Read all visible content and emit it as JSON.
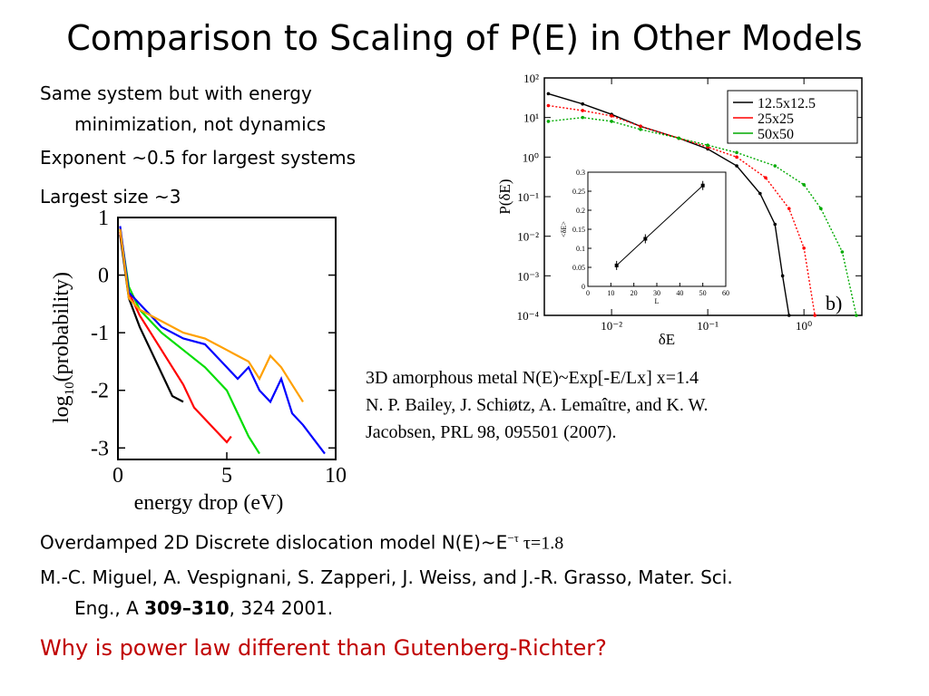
{
  "slide": {
    "title": "Comparison to Scaling of P(E) in Other Models",
    "bullets": {
      "b1_line1": "Same system but with energy",
      "b1_line2": "minimization, not dynamics",
      "b2": "Exponent ~0.5 for largest systems",
      "b3": "Largest size ~3",
      "b4_prefix": "Overdamped 2D Discrete dislocation model N(E)~E",
      "b4_exp": "−τ",
      "b4_suffix": " τ=1.8",
      "ref2_line1": "M.-C. Miguel, A. Vespignani, S. Zapperi, J. Weiss, and J.-R. Grasso, Mater. Sci.",
      "ref2_line2_a": "Eng., A ",
      "ref2_line2_b": "309–310",
      "ref2_line2_c": ", 324 2001.",
      "question": "Why is power law different than Gutenberg-Richter?"
    },
    "caption": {
      "line1": "3D amorphous metal N(E)~Exp[-E/Lx] x=1.4",
      "line2": "N. P. Bailey, J. Schiøtz, A. Lemaître, and K. W.",
      "line3": "Jacobsen, PRL 98, 095501 (2007)."
    },
    "colors": {
      "question": "#c00000"
    }
  },
  "chart_data": [
    {
      "type": "line",
      "title": "",
      "xlabel": "energy drop (eV)",
      "ylabel": "log10(probability)",
      "xlim": [
        0,
        10
      ],
      "ylim": [
        -3.2,
        1
      ],
      "xticks": [
        "0",
        "5",
        "10"
      ],
      "yticks": [
        "1",
        "0",
        "-1",
        "-2",
        "-3"
      ],
      "series": [
        {
          "color": "#000000",
          "x": [
            0.1,
            0.5,
            1,
            1.5,
            2,
            2.5,
            3
          ],
          "y": [
            0.7,
            -0.4,
            -0.9,
            -1.3,
            -1.7,
            -2.1,
            -2.2
          ]
        },
        {
          "color": "#ff0000",
          "x": [
            0.1,
            0.5,
            1,
            1.5,
            2,
            2.5,
            3,
            3.5,
            4,
            4.5,
            5,
            5.2
          ],
          "y": [
            0.75,
            -0.3,
            -0.7,
            -1,
            -1.3,
            -1.6,
            -1.9,
            -2.3,
            -2.5,
            -2.7,
            -2.9,
            -2.8
          ]
        },
        {
          "color": "#00dd00",
          "x": [
            0.1,
            0.5,
            1,
            2,
            3,
            4,
            5,
            5.5,
            6,
            6.5
          ],
          "y": [
            0.8,
            -0.2,
            -0.6,
            -1,
            -1.3,
            -1.6,
            -2,
            -2.4,
            -2.8,
            -3.1
          ]
        },
        {
          "color": "#0000ff",
          "x": [
            0.1,
            0.5,
            1,
            2,
            3,
            4,
            5,
            5.5,
            6,
            6.5,
            7,
            7.5,
            8,
            8.5,
            9,
            9.5
          ],
          "y": [
            0.85,
            -0.3,
            -0.5,
            -0.9,
            -1.1,
            -1.2,
            -1.6,
            -1.8,
            -1.6,
            -2,
            -2.2,
            -1.8,
            -2.4,
            -2.6,
            -2.85,
            -3.1
          ]
        },
        {
          "color": "#ffa000",
          "x": [
            0.1,
            0.5,
            1,
            2,
            3,
            4,
            5,
            5.5,
            6,
            6.5,
            7,
            7.5,
            8,
            8.5
          ],
          "y": [
            0.8,
            -0.4,
            -0.6,
            -0.8,
            -1,
            -1.1,
            -1.3,
            -1.4,
            -1.5,
            -1.8,
            -1.4,
            -1.6,
            -1.9,
            -2.2
          ]
        }
      ]
    },
    {
      "type": "line",
      "xlabel": "δE",
      "ylabel": "P(δE)",
      "xscale": "log",
      "yscale": "log",
      "xlim": [
        0.002,
        4
      ],
      "ylim": [
        0.0001,
        100
      ],
      "xticks": [
        "10⁻²",
        "10⁻¹",
        "10⁰"
      ],
      "yticks": [
        "10²",
        "10¹",
        "10⁰",
        "10⁻¹",
        "10⁻²",
        "10⁻³",
        "10⁻⁴"
      ],
      "legend": "top-right",
      "panel_label": "b)",
      "series": [
        {
          "name": "12.5x12.5",
          "color": "#000000",
          "x": [
            0.0022,
            0.005,
            0.01,
            0.02,
            0.05,
            0.1,
            0.2,
            0.35,
            0.5,
            0.6,
            0.7
          ],
          "y": [
            40,
            22,
            12,
            6,
            3,
            1.6,
            0.6,
            0.12,
            0.02,
            0.001,
            0.0001
          ]
        },
        {
          "name": "25x25",
          "color": "#ff0000",
          "x": [
            0.0022,
            0.005,
            0.01,
            0.02,
            0.05,
            0.1,
            0.2,
            0.4,
            0.7,
            1,
            1.3
          ],
          "y": [
            20,
            15,
            11,
            6,
            3,
            1.8,
            1,
            0.3,
            0.05,
            0.005,
            0.0001
          ]
        },
        {
          "name": "50x50",
          "color": "#00aa00",
          "x": [
            0.0022,
            0.005,
            0.01,
            0.02,
            0.05,
            0.1,
            0.2,
            0.5,
            1,
            1.5,
            2.5,
            3.5
          ],
          "y": [
            8,
            10,
            8,
            5,
            3,
            2,
            1.3,
            0.6,
            0.2,
            0.05,
            0.004,
            0.0001
          ]
        }
      ]
    },
    {
      "type": "line",
      "xlabel": "L",
      "ylabel": "<δE>",
      "xlim": [
        0,
        60
      ],
      "ylim": [
        0,
        0.3
      ],
      "xticks": [
        "0",
        "10",
        "20",
        "30",
        "40",
        "50",
        "60"
      ],
      "yticks": [
        "0",
        "0.05",
        "0.1",
        "0.15",
        "0.2",
        "0.25",
        "0.3"
      ],
      "series": [
        {
          "color": "#000000",
          "x": [
            12.5,
            25,
            50
          ],
          "y": [
            0.055,
            0.125,
            0.265
          ]
        }
      ]
    }
  ]
}
